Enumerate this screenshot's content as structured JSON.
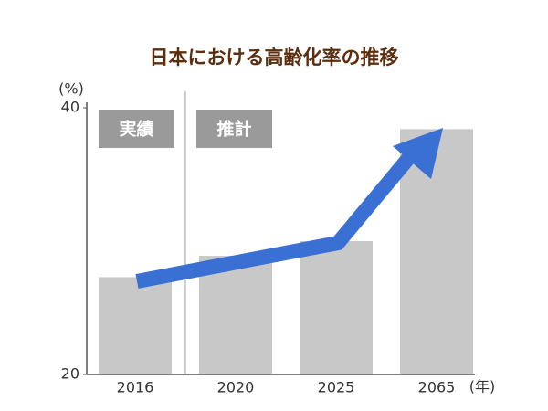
{
  "chart_data": {
    "type": "bar",
    "title": "日本における高齢化率の推移",
    "y_label": "(%)",
    "x_label": "(年)",
    "categories": [
      "2016",
      "2020",
      "2025",
      "2065"
    ],
    "values": [
      27.3,
      28.9,
      30.0,
      38.4
    ],
    "color": "#c8c8c8",
    "ylim": [
      20,
      40
    ],
    "yticks": [
      20,
      40
    ],
    "grid": false,
    "annotations": [
      "実績",
      "推計"
    ]
  }
}
